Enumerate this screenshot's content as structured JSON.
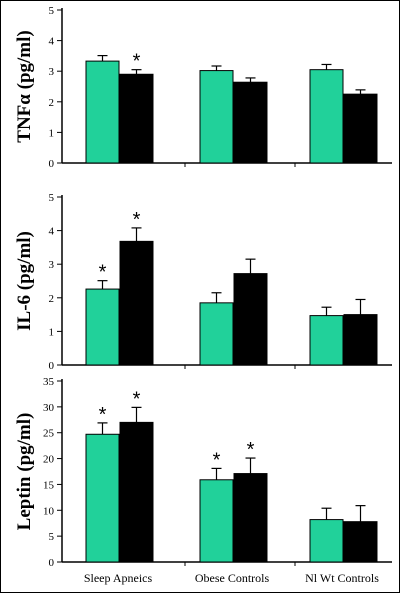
{
  "colors": {
    "series_a": "#21d19a",
    "series_b": "#000000",
    "axis": "#000000"
  },
  "chart_data": [
    {
      "type": "bar",
      "ylabel": "TNFα (pg/ml)",
      "ylim": [
        0,
        5
      ],
      "yticks": [
        0,
        1,
        2,
        3,
        4,
        5
      ],
      "categories": [
        "Sleep Apneics",
        "Obese Controls",
        "Nl Wt Controls"
      ],
      "series": [
        {
          "values": [
            3.33,
            3.02,
            3.05
          ],
          "errors": [
            0.18,
            0.15,
            0.17
          ],
          "significant": [
            false,
            false,
            false
          ]
        },
        {
          "values": [
            2.9,
            2.64,
            2.25
          ],
          "errors": [
            0.15,
            0.14,
            0.14
          ],
          "significant": [
            true,
            false,
            false
          ]
        }
      ],
      "annotation": "*"
    },
    {
      "type": "bar",
      "ylabel": "IL-6 (pg/ml)",
      "ylim": [
        0,
        5
      ],
      "yticks": [
        0,
        1,
        2,
        3,
        4,
        5
      ],
      "categories": [
        "Sleep Apneics",
        "Obese Controls",
        "Nl Wt Controls"
      ],
      "series": [
        {
          "values": [
            2.26,
            1.85,
            1.47
          ],
          "errors": [
            0.25,
            0.3,
            0.25
          ],
          "significant": [
            true,
            false,
            false
          ]
        },
        {
          "values": [
            3.68,
            2.72,
            1.5
          ],
          "errors": [
            0.4,
            0.43,
            0.45
          ],
          "significant": [
            true,
            false,
            false
          ]
        }
      ],
      "annotation": "*"
    },
    {
      "type": "bar",
      "ylabel": "Leptin (pg/ml)",
      "ylim": [
        0,
        35
      ],
      "yticks": [
        0,
        5,
        10,
        15,
        20,
        25,
        30,
        35
      ],
      "categories": [
        "Sleep Apneics",
        "Obese Controls",
        "Nl Wt Controls"
      ],
      "series": [
        {
          "values": [
            24.7,
            15.9,
            8.2
          ],
          "errors": [
            2.2,
            2.2,
            2.2
          ],
          "significant": [
            true,
            true,
            false
          ]
        },
        {
          "values": [
            27.0,
            17.1,
            7.8
          ],
          "errors": [
            2.9,
            3.0,
            3.1
          ],
          "significant": [
            true,
            true,
            false
          ]
        }
      ],
      "annotation": "*"
    }
  ]
}
